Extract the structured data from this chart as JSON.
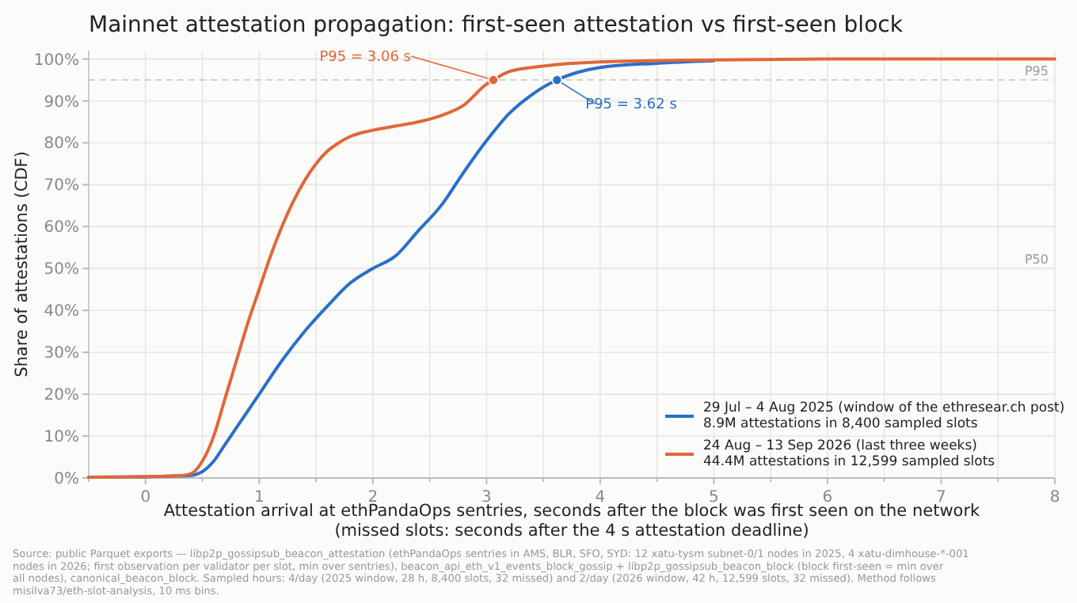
{
  "chart_data": {
    "type": "line",
    "title": "Mainnet attestation propagation: first-seen attestation vs first-seen block",
    "xlabel": "Attestation arrival at ethPandaOps sentries, seconds after the block was first seen on the network\n(missed slots: seconds after the 4 s attestation deadline)",
    "ylabel": "Share of attestations (CDF)",
    "xlim": [
      -0.5,
      8
    ],
    "xticks": [
      {
        "value": -0.5,
        "label": null
      },
      0,
      {
        "value": 0.5,
        "label": null
      },
      1,
      {
        "value": 1.5,
        "label": null
      },
      2,
      {
        "value": 2.5,
        "label": null
      },
      3,
      {
        "value": 3.5,
        "label": null
      },
      4,
      {
        "value": 4.5,
        "label": null
      },
      5,
      {
        "value": 5.5,
        "label": null
      },
      6,
      {
        "value": 6.5,
        "label": null
      },
      7,
      {
        "value": 7.5,
        "label": null
      },
      8
    ],
    "ylim": [
      0,
      102
    ],
    "yticks": [
      {
        "value": 0,
        "label": "0%"
      },
      {
        "value": 10,
        "label": "10%"
      },
      {
        "value": 20,
        "label": "20%"
      },
      {
        "value": 30,
        "label": "30%"
      },
      {
        "value": 40,
        "label": "40%"
      },
      {
        "value": 50,
        "label": "50%"
      },
      {
        "value": 60,
        "label": "60%"
      },
      {
        "value": 70,
        "label": "70%"
      },
      {
        "value": 80,
        "label": "80%"
      },
      {
        "value": 90,
        "label": "90%"
      },
      {
        "value": 100,
        "label": "100%"
      }
    ],
    "grid": true,
    "legend": "bottom right",
    "marker": "none",
    "line_style": "solid",
    "series": [
      {
        "name": "29 Jul – 4 Aug 2025 (window of the ethresear.ch post)\n8.9M attestations in 8,400 sampled slots",
        "color": "#2a6fc9",
        "x": [
          -0.5,
          0,
          0.3,
          0.4,
          0.5,
          0.6,
          0.7,
          0.8,
          0.9,
          1.0,
          1.2,
          1.4,
          1.6,
          1.8,
          2.0,
          2.2,
          2.4,
          2.6,
          2.8,
          3.0,
          3.2,
          3.4,
          3.62,
          3.8,
          4.0,
          4.5,
          5.0
        ],
        "values": [
          0.2,
          0.3,
          0.5,
          0.6,
          1.5,
          4,
          8,
          12,
          16,
          20,
          28,
          35,
          41,
          46.5,
          50,
          53,
          59,
          65,
          73,
          80.5,
          87,
          91.5,
          95,
          96.8,
          98,
          99,
          99.6
        ]
      },
      {
        "name": "24 Aug – 13 Sep 2026 (last three weeks)\n44.4M attestations in 12,599 sampled slots",
        "color": "#e0673a",
        "x": [
          -0.5,
          0,
          0.3,
          0.4,
          0.5,
          0.6,
          0.7,
          0.8,
          0.9,
          1.0,
          1.1,
          1.2,
          1.3,
          1.4,
          1.5,
          1.6,
          1.7,
          1.8,
          2.0,
          2.2,
          2.4,
          2.6,
          2.8,
          3.0,
          3.06,
          3.2,
          3.5,
          4.0,
          5.0,
          6.0,
          8.0
        ],
        "values": [
          0.2,
          0.3,
          0.5,
          1,
          4,
          10,
          19,
          28,
          37,
          45,
          53,
          60,
          66,
          71,
          75,
          78,
          80,
          81.5,
          83,
          84,
          85,
          86.5,
          89,
          94,
          95,
          97,
          98.3,
          99.3,
          99.8,
          100,
          100
        ]
      }
    ],
    "ref_lines": [
      {
        "axis": "y",
        "value": 95,
        "label": "P95",
        "color": "#d0d0d0",
        "line_style": "dashed"
      },
      {
        "axis": "y",
        "value": 50,
        "label": "P50",
        "color": "#e6e6e6",
        "line_style": "solid"
      }
    ],
    "annotations": [
      {
        "text": "P95 = 3.06 s",
        "x": 3.06,
        "y": 95
      },
      {
        "text": "P95 = 3.62 s",
        "x": 3.62,
        "y": 95
      },
      "Source: public Parquet exports — libp2p_gossipsub_beacon_attestation (ethPandaOps sentries in AMS, BLR, SFO, SYD: 12 xatu-tysm subnet-0/1 nodes in 2025, 4 xatu-dimhouse-*-001 nodes in 2026; first observation per validator per slot, min over sentries), beacon_api_eth_v1_events_block_gossip + libp2p_gossipsub_beacon_block (block first-seen = min over all nodes), canonical_beacon_block. Sampled hours: 4/day (2025 window, 28 h, 8,400 slots, 32 missed) and 2/day (2026 window, 42 h, 12,599 slots, 32 missed). Method follows misilva73/eth-slot-analysis, 10 ms bins."
    ]
  }
}
